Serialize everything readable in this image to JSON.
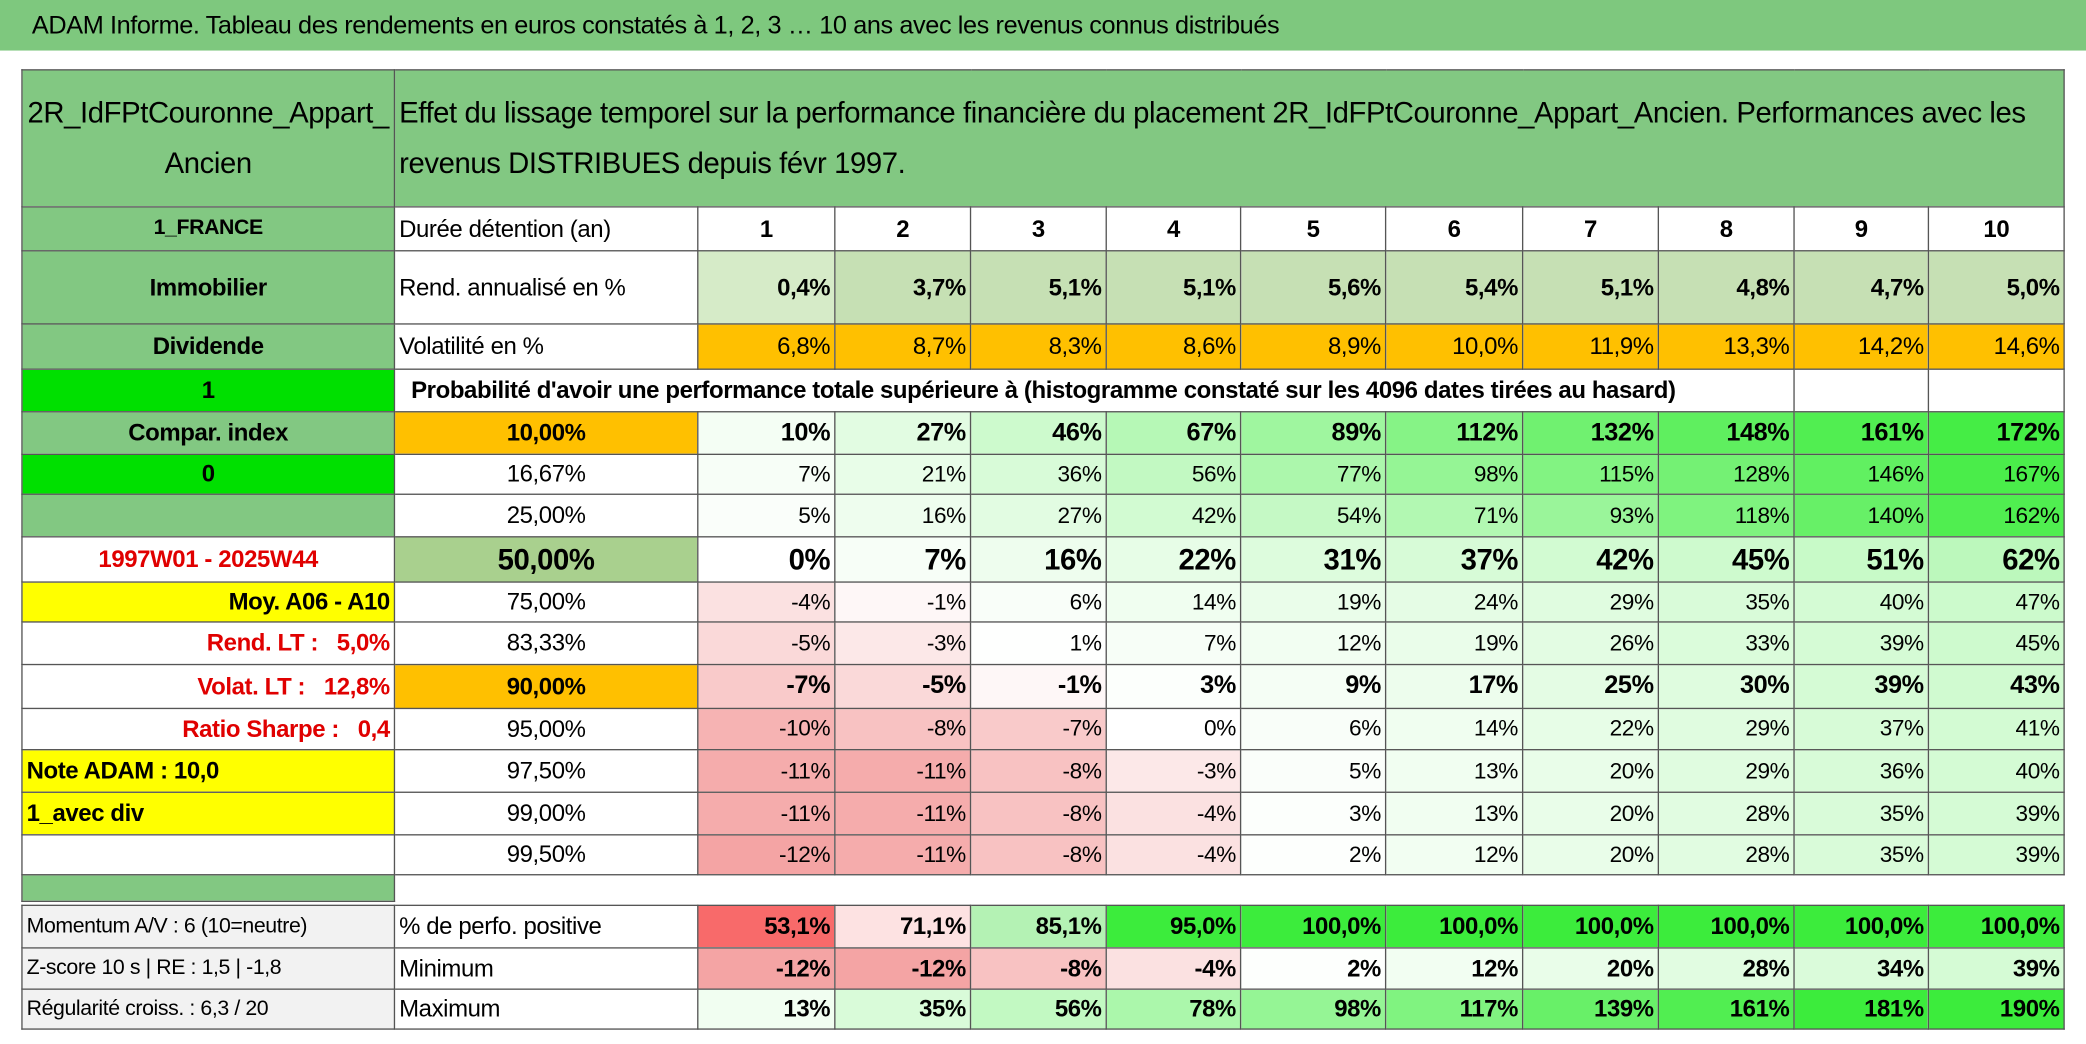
{
  "header": {
    "title": "ADAM Informe. Tableau des rendements en euros constatés à 1, 2, 3 … 10 ans avec les revenus connus distribués"
  },
  "table": {
    "asset": "2R_IdFPtCouronne_Appart_Ancien",
    "description": "Effet du lissage temporel sur la performance financière du placement 2R_IdFPtCouronne_Appart_Ancien. Performances avec les revenus DISTRIBUES depuis févr 1997.",
    "summary_rows": [
      {
        "side": "1_FRANCE",
        "label": "Durée détention (an)",
        "values": [
          1,
          2,
          3,
          4,
          5,
          6,
          7,
          8,
          9,
          10
        ]
      },
      {
        "side": "Immobilier",
        "label": "Rend. annualisé en %",
        "values": [
          "0,4%",
          "3,7%",
          "5,1%",
          "5,1%",
          "5,6%",
          "5,4%",
          "5,1%",
          "4,8%",
          "4,7%",
          "5,0%"
        ]
      },
      {
        "side": "Dividende",
        "label": "Volatilité en %",
        "values": [
          "6,8%",
          "8,7%",
          "8,3%",
          "8,6%",
          "8,9%",
          "10,0%",
          "11,9%",
          "13,3%",
          "14,2%",
          "14,6%"
        ]
      }
    ],
    "probability_row": {
      "side": "1",
      "label": "Probabilité d'avoir une performance totale supérieure à (histogramme constaté sur les 4096 dates tirées au hasard)"
    },
    "quantile_rows": [
      {
        "side": "Compar. index",
        "level": "10,00%",
        "values": [
          "10%",
          "27%",
          "46%",
          "67%",
          "89%",
          "112%",
          "132%",
          "148%",
          "161%",
          "172%"
        ]
      },
      {
        "side": "0",
        "level": "16,67%",
        "values": [
          "7%",
          "21%",
          "36%",
          "56%",
          "77%",
          "98%",
          "115%",
          "128%",
          "146%",
          "167%"
        ]
      },
      {
        "level": "25,00%",
        "values": [
          "5%",
          "16%",
          "27%",
          "42%",
          "54%",
          "71%",
          "93%",
          "118%",
          "140%",
          "162%"
        ]
      },
      {
        "side": "1997W01 - 2025W44",
        "level": "50,00%",
        "values": [
          "0%",
          "7%",
          "16%",
          "22%",
          "31%",
          "37%",
          "42%",
          "45%",
          "51%",
          "62%"
        ]
      },
      {
        "side": "Moy. A06 - A10",
        "level": "75,00%",
        "values": [
          "-4%",
          "-1%",
          "6%",
          "14%",
          "19%",
          "24%",
          "29%",
          "35%",
          "40%",
          "47%"
        ]
      },
      {
        "side": "Rend. LT :   5,0%",
        "level": "83,33%",
        "values": [
          "-5%",
          "-3%",
          "1%",
          "7%",
          "12%",
          "19%",
          "26%",
          "33%",
          "39%",
          "45%"
        ]
      },
      {
        "side": "Volat. LT :   12,8%",
        "level": "90,00%",
        "values": [
          "-7%",
          "-5%",
          "-1%",
          "3%",
          "9%",
          "17%",
          "25%",
          "30%",
          "39%",
          "43%"
        ]
      },
      {
        "side": "Ratio Sharpe :   0,4",
        "level": "95,00%",
        "values": [
          "-10%",
          "-8%",
          "-7%",
          "0%",
          "6%",
          "14%",
          "22%",
          "29%",
          "37%",
          "41%"
        ]
      },
      {
        "side": "Note ADAM : 10,0",
        "level": "97,50%",
        "values": [
          "-11%",
          "-11%",
          "-8%",
          "-3%",
          "5%",
          "13%",
          "20%",
          "29%",
          "36%",
          "40%"
        ]
      },
      {
        "side": "1_avec div",
        "level": "99,00%",
        "values": [
          "-11%",
          "-11%",
          "-8%",
          "-4%",
          "3%",
          "13%",
          "20%",
          "28%",
          "35%",
          "39%"
        ]
      },
      {
        "level": "99,50%",
        "values": [
          "-12%",
          "-11%",
          "-8%",
          "-4%",
          "2%",
          "12%",
          "20%",
          "28%",
          "35%",
          "39%"
        ]
      }
    ],
    "stat_rows": [
      {
        "side": "Momentum A/V : 6 (10=neutre)",
        "label": "% de perfo. positive",
        "values": [
          "53,1%",
          "71,1%",
          "85,1%",
          "95,0%",
          "100,0%",
          "100,0%",
          "100,0%",
          "100,0%",
          "100,0%",
          "100,0%"
        ]
      },
      {
        "side": "Z-score 10 s | RE : 1,5 | -1,8",
        "label": "Minimum",
        "values": [
          "-12%",
          "-12%",
          "-8%",
          "-4%",
          "2%",
          "12%",
          "20%",
          "28%",
          "34%",
          "39%"
        ]
      },
      {
        "side": "Régularité croiss. : 6,3 / 20",
        "label": "Maximum",
        "values": [
          "13%",
          "35%",
          "56%",
          "78%",
          "98%",
          "117%",
          "139%",
          "161%",
          "181%",
          "190%"
        ]
      }
    ]
  }
}
